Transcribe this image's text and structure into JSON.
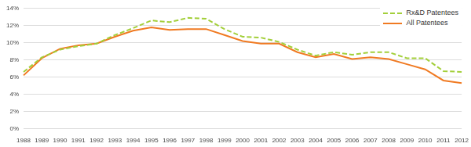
{
  "chart_data": {
    "type": "line",
    "categories": [
      "1988",
      "1989",
      "1990",
      "1991",
      "1992",
      "1993",
      "1994",
      "1995",
      "1996",
      "1997",
      "1998",
      "1999",
      "2000",
      "2001",
      "2002",
      "2003",
      "2004",
      "2005",
      "2006",
      "2007",
      "2008",
      "2009",
      "2010",
      "2011",
      "2012"
    ],
    "series": [
      {
        "name": "Rx&D Patentees",
        "color": "#a3cf3a",
        "line_style": "dashed",
        "marker": "none",
        "values": [
          6.6,
          8.3,
          9.2,
          9.6,
          9.9,
          10.9,
          11.7,
          12.6,
          12.4,
          12.9,
          12.8,
          11.6,
          10.7,
          10.6,
          10.1,
          9.2,
          8.5,
          8.9,
          8.6,
          8.9,
          8.9,
          8.2,
          8.2,
          6.7,
          6.6
        ]
      },
      {
        "name": "All Patentees",
        "color": "#f07a22",
        "line_style": "solid",
        "marker": "none",
        "values": [
          6.2,
          8.2,
          9.3,
          9.7,
          9.9,
          10.7,
          11.4,
          11.8,
          11.5,
          11.6,
          11.6,
          10.9,
          10.2,
          9.9,
          9.9,
          8.9,
          8.3,
          8.7,
          8.1,
          8.3,
          8.1,
          7.5,
          6.9,
          5.6,
          5.3
        ]
      }
    ],
    "ylim": [
      0,
      14
    ],
    "yticks": [
      {
        "value": 0,
        "label": "0%"
      },
      {
        "value": 2,
        "label": "2%"
      },
      {
        "value": 4,
        "label": "4%"
      },
      {
        "value": 6,
        "label": "6%"
      },
      {
        "value": 8,
        "label": "8%"
      },
      {
        "value": 10,
        "label": "10%"
      },
      {
        "value": 12,
        "label": "12%"
      },
      {
        "value": 14,
        "label": "14%"
      }
    ],
    "grid": true,
    "legend": "top-right"
  }
}
